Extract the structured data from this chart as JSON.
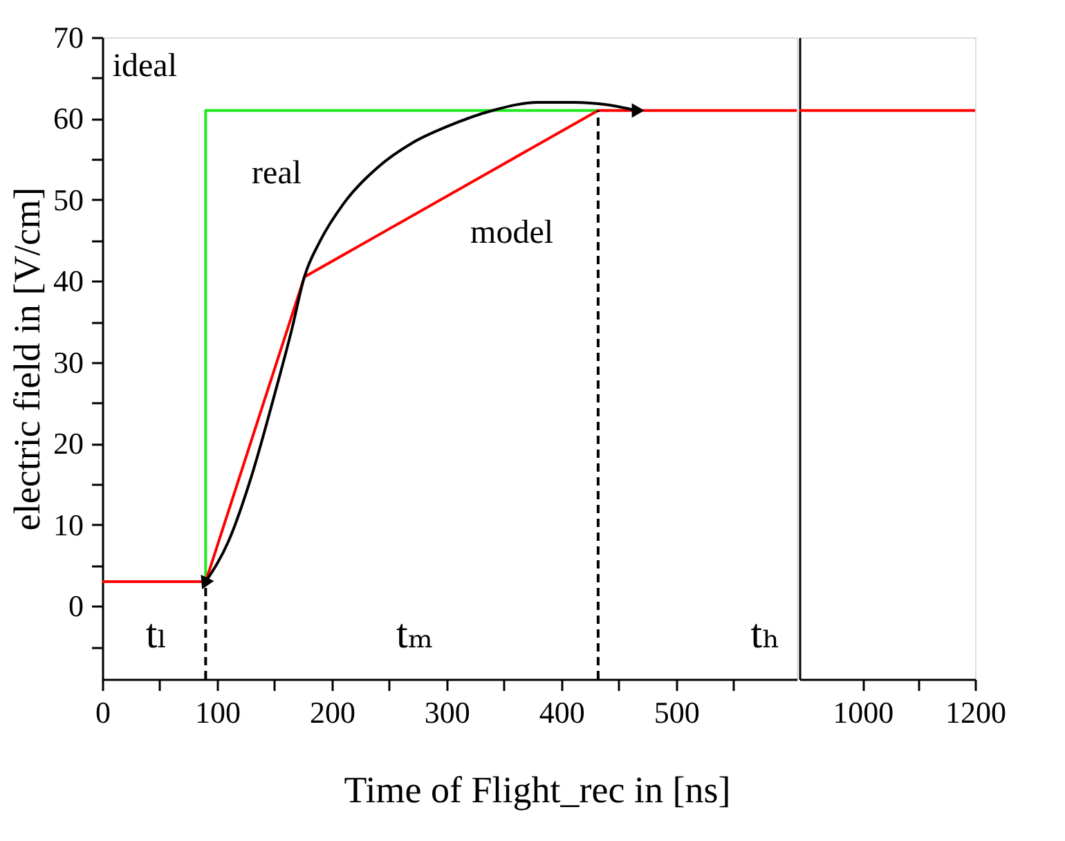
{
  "chart_data": [
    {
      "type": "line",
      "ylabel": "electric field in [V/cm]",
      "xlabel": "Time of Flight_rec in [ns]",
      "xlim": [
        0,
        605
      ],
      "ylim": [
        -9,
        70
      ],
      "xticks": [
        0,
        {
          "value": 50,
          "label": null
        },
        100,
        {
          "value": 150,
          "label": null
        },
        200,
        {
          "value": 250,
          "label": null
        },
        300,
        {
          "value": 350,
          "label": null
        },
        400,
        {
          "value": 450,
          "label": null
        },
        500,
        {
          "value": 550,
          "label": null
        }
      ],
      "yticks": [
        {
          "value": -5,
          "label": null
        },
        0,
        {
          "value": 5,
          "label": null
        },
        10,
        {
          "value": 15,
          "label": null
        },
        20,
        {
          "value": 25,
          "label": null
        },
        30,
        {
          "value": 35,
          "label": null
        },
        40,
        {
          "value": 45,
          "label": null
        },
        50,
        {
          "value": 55,
          "label": null
        },
        60,
        {
          "value": 65,
          "label": null
        },
        70
      ],
      "series": [
        {
          "name": "ideal",
          "color": "#1ee81e",
          "x": [
            90,
            90,
            432
          ],
          "values": [
            3,
            61,
            61
          ]
        },
        {
          "name": "model",
          "color": "#ff0000",
          "x": [
            0,
            90,
            176,
            432,
            605
          ],
          "values": [
            3,
            3,
            40.5,
            61,
            61
          ]
        },
        {
          "name": "real",
          "color": "#000000",
          "x": [
            90,
            110,
            130,
            150,
            165,
            176,
            190,
            210,
            240,
            270,
            300,
            340,
            380,
            410,
            440,
            465
          ],
          "values": [
            3,
            8,
            16,
            26,
            34,
            40.5,
            45,
            49.5,
            54,
            57,
            59,
            61,
            62,
            62,
            61.7,
            61
          ]
        },
        {
          "color": "#000000",
          "line_style": "dashed",
          "x": [
            90,
            90
          ],
          "values": [
            -9,
            3
          ]
        },
        {
          "color": "#000000",
          "line_style": "dashed",
          "x": [
            432,
            432
          ],
          "values": [
            -9,
            61
          ]
        }
      ],
      "annotations": [
        "tₗ",
        "tₘ",
        "tₕ"
      ]
    },
    {
      "type": "line",
      "tick_labels": "x",
      "xlim": [
        888,
        1200
      ],
      "ylim": [
        -9,
        70
      ],
      "xticks": [
        1000,
        {
          "value": 1100,
          "label": null
        },
        1200
      ],
      "series": [
        {
          "color": "#ff0000",
          "x": [
            888,
            1200
          ],
          "values": [
            61,
            61
          ]
        }
      ]
    }
  ]
}
